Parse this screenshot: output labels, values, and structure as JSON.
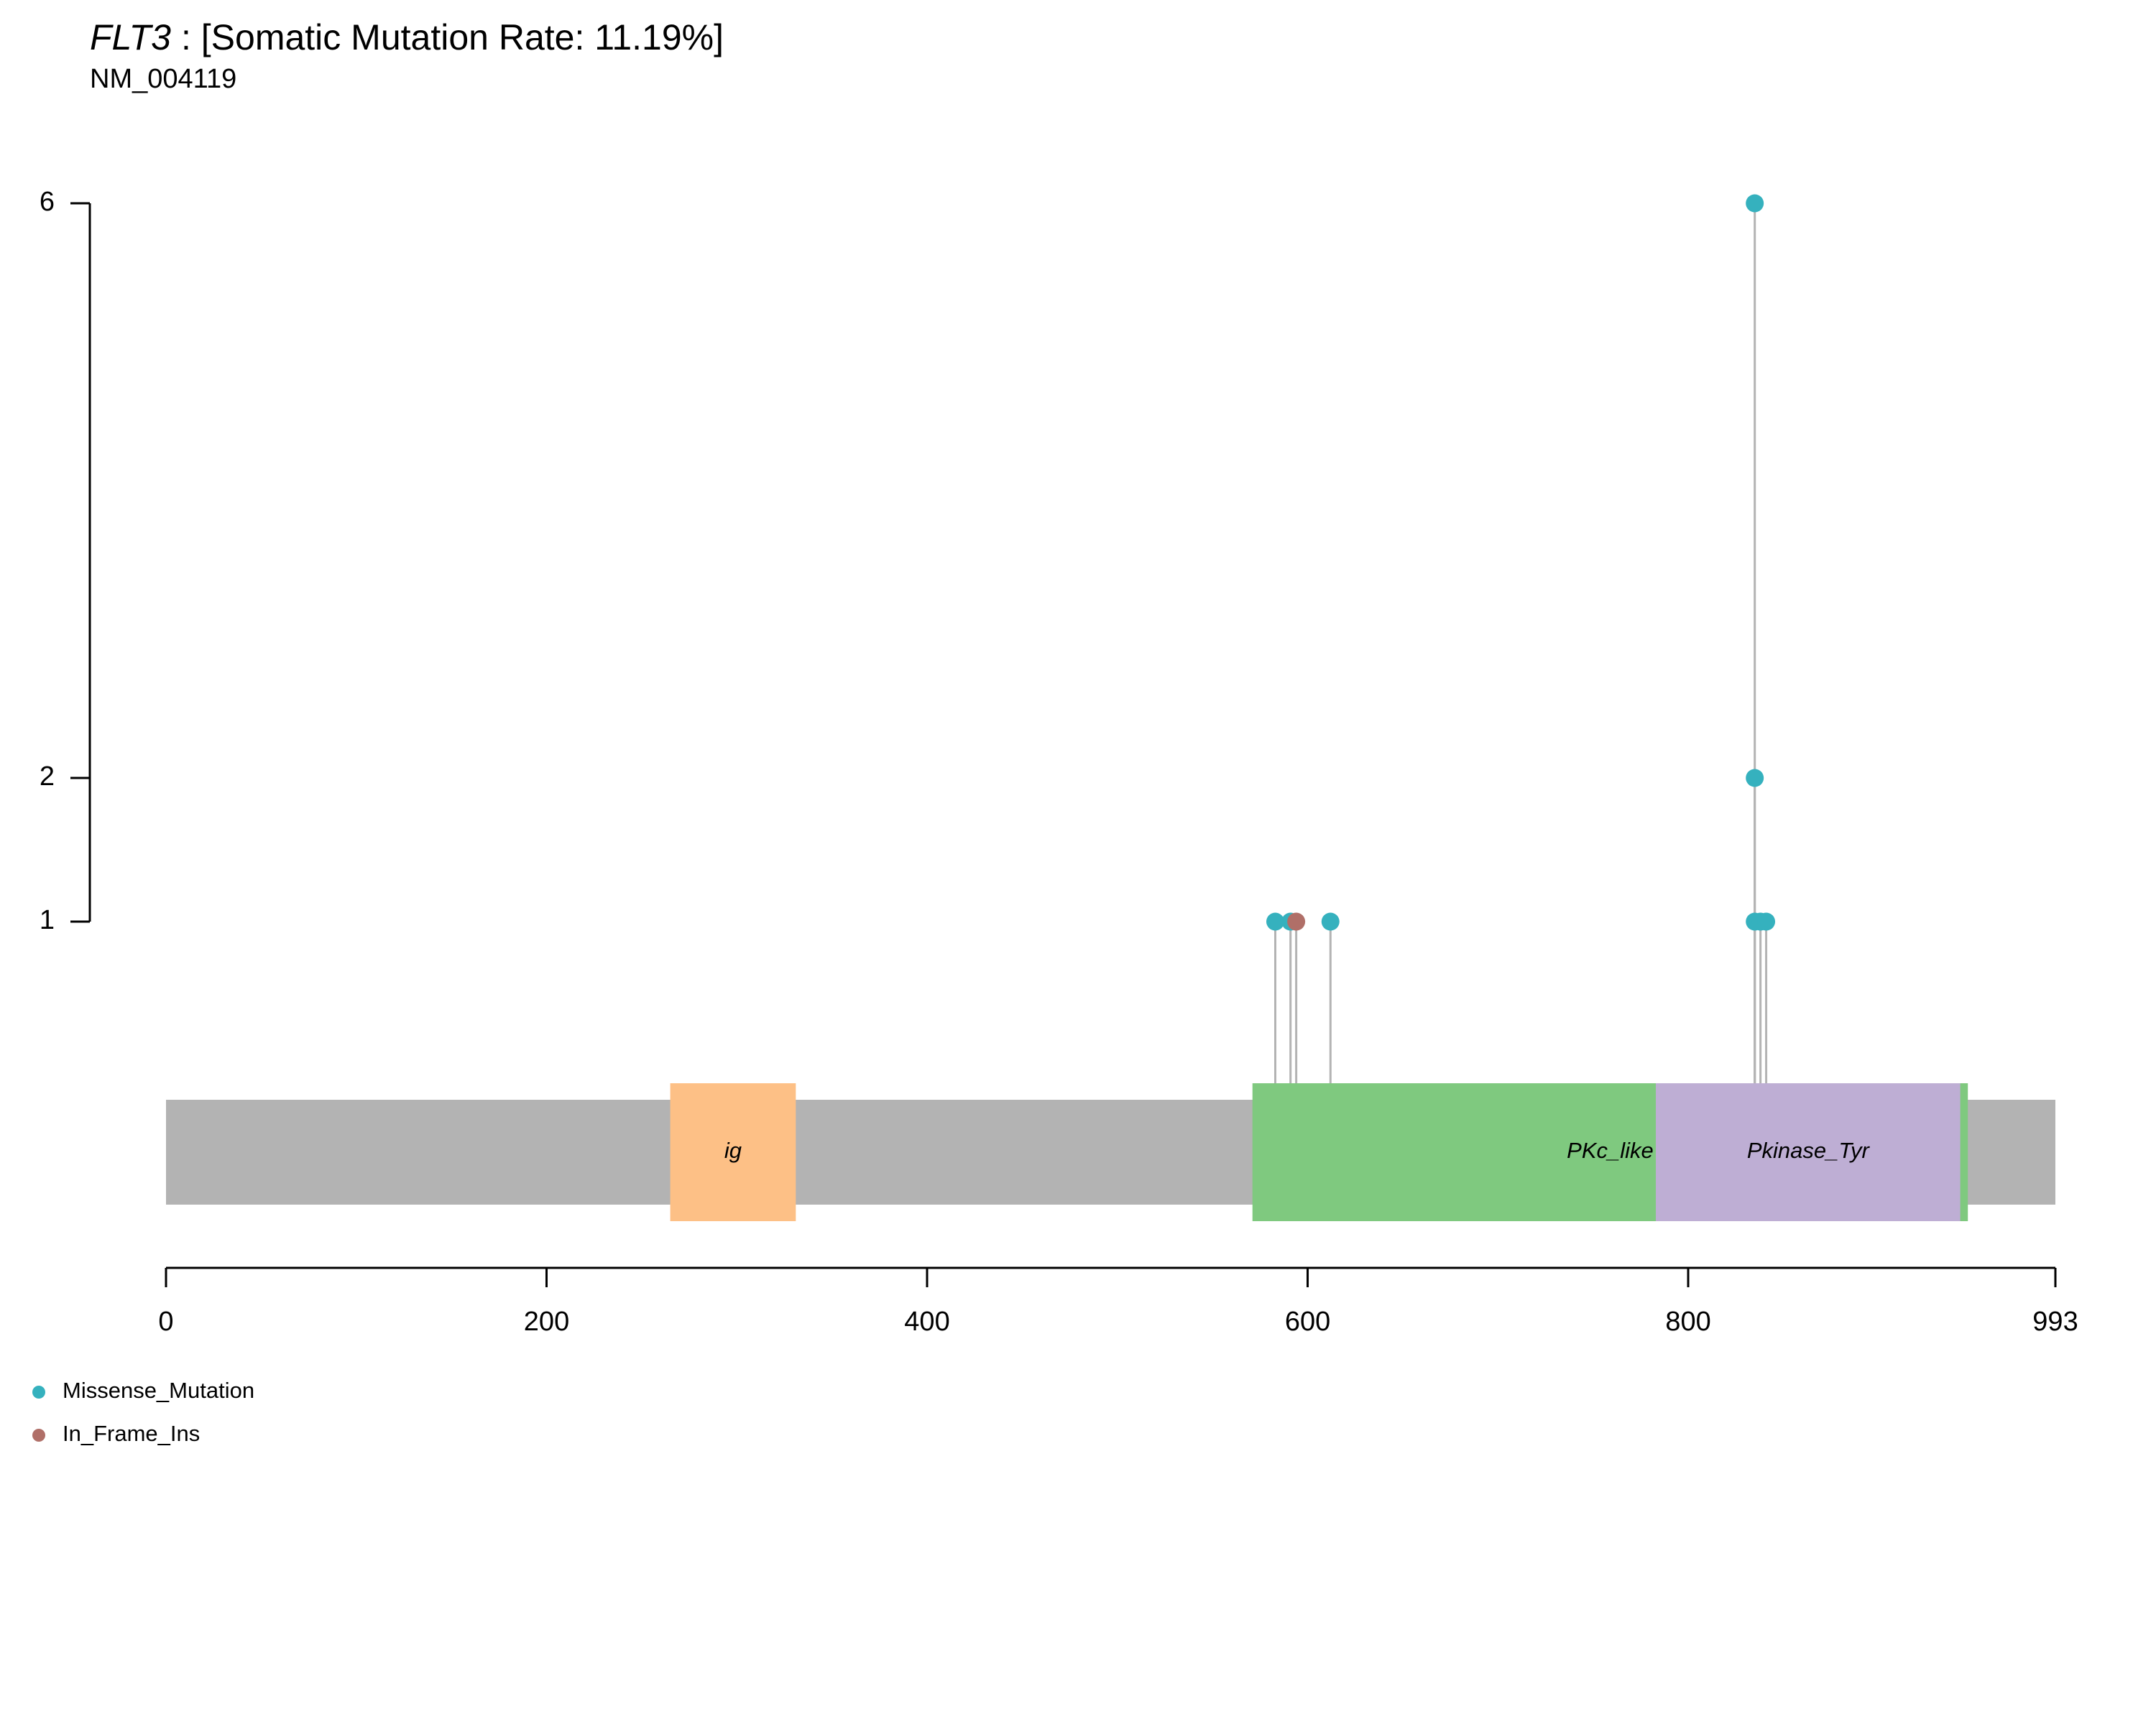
{
  "chart_data": {
    "type": "lollipop",
    "gene": "FLT3",
    "title": ": [Somatic Mutation Rate: 11.19%]",
    "subtitle": "NM_004119",
    "xlim": [
      0,
      993
    ],
    "xticks": [
      0,
      200,
      400,
      600,
      800,
      993
    ],
    "ylim": [
      1,
      6
    ],
    "yticks": [
      1,
      2,
      6
    ],
    "protein_color": "#b3b3b3",
    "domains": [
      {
        "name": "ig",
        "start": 265,
        "end": 331,
        "color": "#fdc086"
      },
      {
        "name": "PKc_like",
        "start": 571,
        "end": 947,
        "color": "#7fc97f"
      },
      {
        "name": "Pkinase_Tyr",
        "start": 783,
        "end": 943,
        "color": "#beaed4"
      }
    ],
    "series": [
      {
        "name": "Missense_Mutation",
        "color": "#35b1be",
        "x": [
          583,
          591,
          612,
          835,
          835,
          835,
          838,
          841
        ],
        "values": [
          1,
          1,
          1,
          6,
          2,
          1,
          1,
          1
        ]
      },
      {
        "name": "In_Frame_Ins",
        "color": "#b06f68",
        "x": [
          594
        ],
        "values": [
          1
        ]
      }
    ]
  }
}
